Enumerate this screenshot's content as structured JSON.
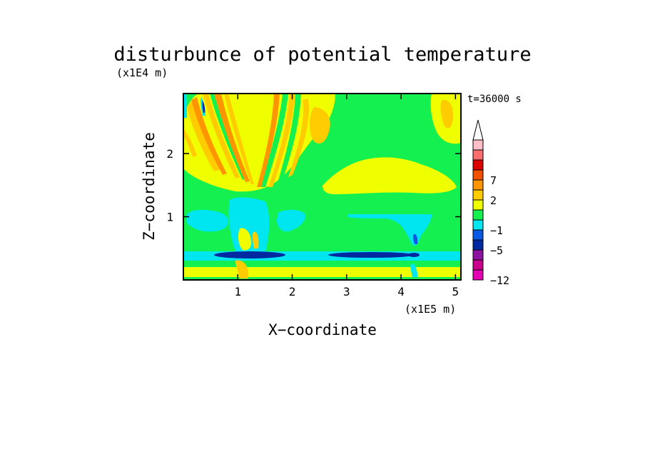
{
  "chart_data": {
    "type": "heatmap",
    "title": "disturbunce of potential temperature",
    "time_label": "t=36000 s",
    "xlabel": "X−coordinate",
    "ylabel": "Z−coordinate",
    "x_scale_label": "(x1E5 m)",
    "y_scale_label": "(x1E4 m)",
    "xlim": [
      0,
      5.1
    ],
    "ylim": [
      0,
      2.95
    ],
    "x_ticks": [
      "1",
      "2",
      "3",
      "4",
      "5"
    ],
    "x_tick_values": [
      1,
      2,
      3,
      4,
      5
    ],
    "y_ticks": [
      "1",
      "2"
    ],
    "y_tick_values": [
      1,
      2
    ],
    "colorbar": {
      "extend": "max",
      "colors": [
        "#e600b4",
        "#c8008c",
        "#8c14a0",
        "#0028a0",
        "#0a5ae6",
        "#00e6f0",
        "#14f050",
        "#f0ff00",
        "#ffcc00",
        "#ff9600",
        "#f05000",
        "#dc0000",
        "#ff6e6e",
        "#ffbec8"
      ],
      "tick_labels": [
        "−12",
        "−5",
        "−1",
        "2",
        "7"
      ],
      "tick_bins": [
        0,
        3,
        5,
        8,
        10
      ]
    },
    "field": {
      "background_level": "0 to 1 (green)",
      "regions": [
        {
          "level": "1 to 2 (yellow)",
          "x": [
            0.0,
            2.2
          ],
          "z": [
            1.6,
            2.95
          ]
        },
        {
          "level": "1 to 2 (yellow)",
          "x": [
            2.5,
            4.9
          ],
          "z": [
            1.35,
            1.85
          ]
        },
        {
          "level": "-1 to 0 (cyan)",
          "x": [
            0.0,
            5.1
          ],
          "z": [
            0.37,
            0.5
          ]
        },
        {
          "level": "-5 to -2 (blue)",
          "x": [
            0.5,
            1.8
          ],
          "z": [
            0.37,
            0.45
          ]
        },
        {
          "level": "-5 to -2 (blue)",
          "x": [
            2.9,
            4.1
          ],
          "z": [
            0.37,
            0.43
          ]
        },
        {
          "level": "1 to 2 (yellow)",
          "x": [
            0.0,
            5.1
          ],
          "z": [
            0.05,
            0.2
          ]
        }
      ]
    }
  }
}
